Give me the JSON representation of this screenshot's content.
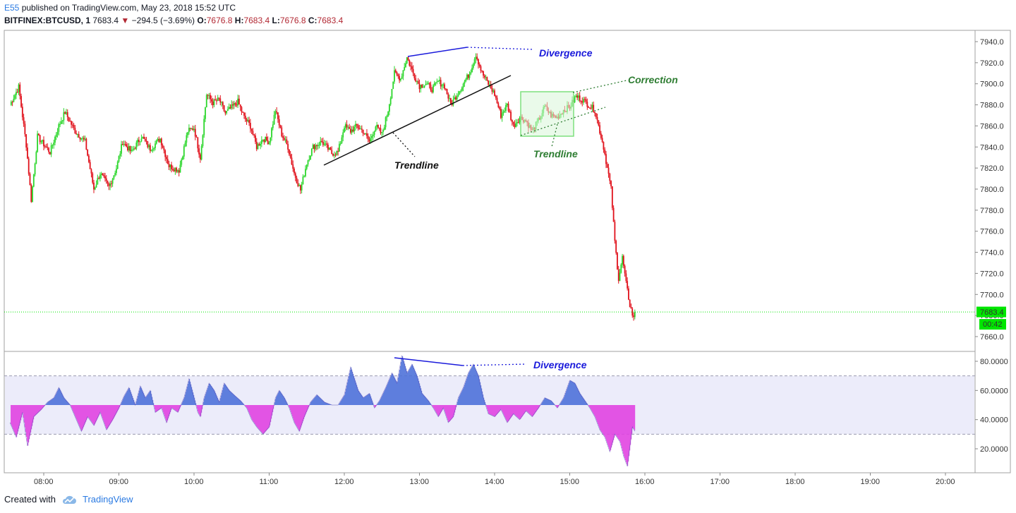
{
  "header": {
    "author": "E55",
    "published": "published on TradingView.com, May 23, 2018 15:52 UTC",
    "symbol": "BITFINEX:BTCUSD, 1",
    "last": "7683.4",
    "change": "−294.5 (−3.69%)",
    "o_label": "O:",
    "o_value": "7676.8",
    "h_label": "H:",
    "h_value": "7683.4",
    "l_label": "L:",
    "l_value": "7676.8",
    "c_label": "C:",
    "c_value": "7683.4"
  },
  "footer": {
    "created_with": "Created with",
    "brand": "TradingView"
  },
  "chart_data": [
    {
      "type": "candlestick",
      "symbol": "BITFINEX:BTCUSD",
      "interval": "1",
      "ylim": [
        7650,
        7950
      ],
      "price_ticks": [
        "7940.0",
        "7920.0",
        "7900.0",
        "7880.0",
        "7860.0",
        "7840.0",
        "7820.0",
        "7800.0",
        "7780.0",
        "7760.0",
        "7740.0",
        "7720.0",
        "7700.0",
        "7680.0",
        "7660.0"
      ],
      "time_ticks": [
        "08:00",
        "09:00",
        "10:00",
        "11:00",
        "12:00",
        "13:00",
        "14:00",
        "15:00",
        "16:00",
        "17:00",
        "18:00",
        "19:00",
        "20:00"
      ],
      "last_price_label": "7683.4",
      "countdown_label": "00:42",
      "colors": {
        "up": "#2bd62b",
        "down": "#e0101a",
        "last_price": "#00e600"
      },
      "price_path": [
        [
          "07:33",
          7880
        ],
        [
          "07:40",
          7897
        ],
        [
          "07:46",
          7842
        ],
        [
          "07:50",
          7790
        ],
        [
          "07:55",
          7850
        ],
        [
          "08:05",
          7835
        ],
        [
          "08:12",
          7860
        ],
        [
          "08:17",
          7873
        ],
        [
          "08:25",
          7855
        ],
        [
          "08:33",
          7845
        ],
        [
          "08:40",
          7800
        ],
        [
          "08:45",
          7815
        ],
        [
          "08:52",
          7802
        ],
        [
          "08:58",
          7820
        ],
        [
          "09:03",
          7845
        ],
        [
          "09:10",
          7835
        ],
        [
          "09:18",
          7850
        ],
        [
          "09:25",
          7838
        ],
        [
          "09:33",
          7848
        ],
        [
          "09:40",
          7822
        ],
        [
          "09:48",
          7818
        ],
        [
          "09:55",
          7855
        ],
        [
          "10:00",
          7858
        ],
        [
          "10:05",
          7830
        ],
        [
          "10:10",
          7890
        ],
        [
          "10:15",
          7882
        ],
        [
          "10:20",
          7885
        ],
        [
          "10:25",
          7872
        ],
        [
          "10:35",
          7883
        ],
        [
          "10:40",
          7868
        ],
        [
          "10:45",
          7860
        ],
        [
          "10:50",
          7840
        ],
        [
          "10:55",
          7848
        ],
        [
          "11:00",
          7845
        ],
        [
          "11:05",
          7875
        ],
        [
          "11:10",
          7852
        ],
        [
          "11:15",
          7840
        ],
        [
          "11:20",
          7815
        ],
        [
          "11:25",
          7799
        ],
        [
          "11:30",
          7825
        ],
        [
          "11:35",
          7840
        ],
        [
          "11:42",
          7845
        ],
        [
          "11:50",
          7834
        ],
        [
          "11:55",
          7835
        ],
        [
          "12:00",
          7860
        ],
        [
          "12:05",
          7855
        ],
        [
          "12:10",
          7860
        ],
        [
          "12:15",
          7855
        ],
        [
          "12:20",
          7845
        ],
        [
          "12:25",
          7860
        ],
        [
          "12:30",
          7852
        ],
        [
          "12:35",
          7875
        ],
        [
          "12:40",
          7910
        ],
        [
          "12:45",
          7905
        ],
        [
          "12:50",
          7925
        ],
        [
          "12:55",
          7910
        ],
        [
          "13:00",
          7898
        ],
        [
          "13:05",
          7900
        ],
        [
          "13:10",
          7895
        ],
        [
          "13:15",
          7902
        ],
        [
          "13:20",
          7898
        ],
        [
          "13:25",
          7880
        ],
        [
          "13:30",
          7890
        ],
        [
          "13:35",
          7900
        ],
        [
          "13:40",
          7910
        ],
        [
          "13:45",
          7928
        ],
        [
          "13:50",
          7910
        ],
        [
          "13:55",
          7900
        ],
        [
          "14:00",
          7890
        ],
        [
          "14:05",
          7870
        ],
        [
          "14:10",
          7880
        ],
        [
          "14:15",
          7860
        ],
        [
          "14:20",
          7868
        ],
        [
          "14:25",
          7865
        ],
        [
          "14:30",
          7855
        ],
        [
          "14:35",
          7865
        ],
        [
          "14:40",
          7878
        ],
        [
          "14:45",
          7870
        ],
        [
          "14:50",
          7868
        ],
        [
          "14:55",
          7875
        ],
        [
          "15:00",
          7878
        ],
        [
          "15:05",
          7888
        ],
        [
          "15:10",
          7885
        ],
        [
          "15:15",
          7880
        ],
        [
          "15:20",
          7875
        ],
        [
          "15:23",
          7860
        ],
        [
          "15:27",
          7840
        ],
        [
          "15:30",
          7820
        ],
        [
          "15:33",
          7800
        ],
        [
          "15:36",
          7750
        ],
        [
          "15:39",
          7715
        ],
        [
          "15:42",
          7735
        ],
        [
          "15:45",
          7710
        ],
        [
          "15:48",
          7690
        ],
        [
          "15:51",
          7676.8
        ],
        [
          "15:52",
          7683.4
        ]
      ]
    },
    {
      "type": "area",
      "name": "oscillator",
      "ylim": [
        5,
        85
      ],
      "baseline": 50,
      "bands": [
        30,
        70
      ],
      "ticks": [
        "80.0000",
        "60.0000",
        "40.0000",
        "20.0000"
      ],
      "colors": {
        "above": "#4a6fd8",
        "below": "#e040e0",
        "band_fill": "#ececfa"
      },
      "values": [
        [
          "07:33",
          38
        ],
        [
          "07:38",
          28
        ],
        [
          "07:43",
          45
        ],
        [
          "07:47",
          22
        ],
        [
          "07:52",
          42
        ],
        [
          "07:58",
          47
        ],
        [
          "08:03",
          52
        ],
        [
          "08:08",
          55
        ],
        [
          "08:12",
          62
        ],
        [
          "08:16",
          55
        ],
        [
          "08:21",
          50
        ],
        [
          "08:26",
          40
        ],
        [
          "08:30",
          32
        ],
        [
          "08:35",
          42
        ],
        [
          "08:40",
          36
        ],
        [
          "08:45",
          45
        ],
        [
          "08:50",
          33
        ],
        [
          "08:55",
          40
        ],
        [
          "09:00",
          48
        ],
        [
          "09:04",
          56
        ],
        [
          "09:08",
          62
        ],
        [
          "09:13",
          50
        ],
        [
          "09:17",
          63
        ],
        [
          "09:21",
          55
        ],
        [
          "09:25",
          60
        ],
        [
          "09:29",
          45
        ],
        [
          "09:34",
          48
        ],
        [
          "09:38",
          38
        ],
        [
          "09:42",
          48
        ],
        [
          "09:47",
          45
        ],
        [
          "09:52",
          55
        ],
        [
          "09:56",
          68
        ],
        [
          "10:00",
          55
        ],
        [
          "10:03",
          45
        ],
        [
          "10:05",
          42
        ],
        [
          "10:08",
          55
        ],
        [
          "10:12",
          65
        ],
        [
          "10:16",
          60
        ],
        [
          "10:20",
          52
        ],
        [
          "10:24",
          65
        ],
        [
          "10:28",
          60
        ],
        [
          "10:33",
          56
        ],
        [
          "10:37",
          53
        ],
        [
          "10:42",
          48
        ],
        [
          "10:46",
          40
        ],
        [
          "10:50",
          35
        ],
        [
          "10:55",
          30
        ],
        [
          "11:00",
          35
        ],
        [
          "11:05",
          55
        ],
        [
          "11:08",
          60
        ],
        [
          "11:12",
          55
        ],
        [
          "11:16",
          48
        ],
        [
          "11:20",
          38
        ],
        [
          "11:24",
          32
        ],
        [
          "11:28",
          42
        ],
        [
          "11:33",
          52
        ],
        [
          "11:38",
          57
        ],
        [
          "11:44",
          52
        ],
        [
          "11:50",
          50
        ],
        [
          "11:55",
          50
        ],
        [
          "12:00",
          57
        ],
        [
          "12:05",
          76
        ],
        [
          "12:08",
          68
        ],
        [
          "12:11",
          60
        ],
        [
          "12:15",
          55
        ],
        [
          "12:20",
          58
        ],
        [
          "12:24",
          48
        ],
        [
          "12:28",
          53
        ],
        [
          "12:33",
          62
        ],
        [
          "12:38",
          72
        ],
        [
          "12:42",
          65
        ],
        [
          "12:46",
          84
        ],
        [
          "12:50",
          72
        ],
        [
          "12:54",
          78
        ],
        [
          "12:58",
          70
        ],
        [
          "13:02",
          58
        ],
        [
          "13:07",
          53
        ],
        [
          "13:11",
          48
        ],
        [
          "13:15",
          42
        ],
        [
          "13:19",
          48
        ],
        [
          "13:23",
          38
        ],
        [
          "13:27",
          42
        ],
        [
          "13:31",
          55
        ],
        [
          "13:35",
          62
        ],
        [
          "13:39",
          72
        ],
        [
          "13:43",
          78
        ],
        [
          "13:47",
          70
        ],
        [
          "13:51",
          55
        ],
        [
          "13:55",
          44
        ],
        [
          "14:00",
          42
        ],
        [
          "14:05",
          47
        ],
        [
          "14:10",
          38
        ],
        [
          "14:15",
          44
        ],
        [
          "14:20",
          40
        ],
        [
          "14:25",
          46
        ],
        [
          "14:30",
          42
        ],
        [
          "14:35",
          48
        ],
        [
          "14:40",
          55
        ],
        [
          "14:45",
          53
        ],
        [
          "14:50",
          48
        ],
        [
          "14:55",
          55
        ],
        [
          "15:00",
          67
        ],
        [
          "15:04",
          65
        ],
        [
          "15:08",
          58
        ],
        [
          "15:12",
          53
        ],
        [
          "15:16",
          48
        ],
        [
          "15:20",
          42
        ],
        [
          "15:24",
          33
        ],
        [
          "15:28",
          28
        ],
        [
          "15:32",
          18
        ],
        [
          "15:36",
          30
        ],
        [
          "15:40",
          25
        ],
        [
          "15:43",
          15
        ],
        [
          "15:46",
          8
        ],
        [
          "15:50",
          35
        ],
        [
          "15:52",
          32
        ]
      ]
    }
  ],
  "annotations": [
    {
      "text": "Divergence",
      "color": "#1a1adb",
      "pane": "price"
    },
    {
      "text": "Correction",
      "color": "#2e7d32",
      "pane": "price"
    },
    {
      "text": "Trendline",
      "color": "#111111",
      "pane": "price"
    },
    {
      "text": "Trendline",
      "color": "#2e7d32",
      "pane": "price"
    },
    {
      "text": "Divergence",
      "color": "#1a1adb",
      "pane": "oscillator"
    }
  ]
}
